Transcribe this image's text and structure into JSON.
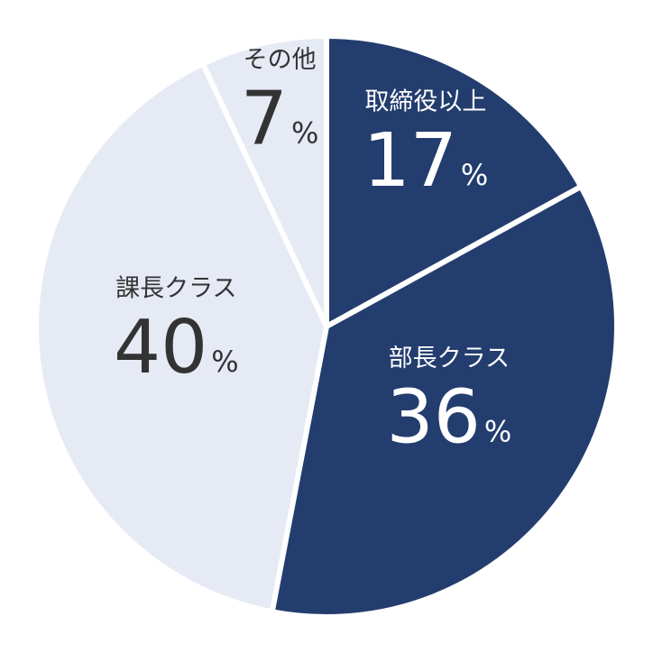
{
  "chart_data": {
    "type": "pie",
    "categories": [
      "取締役以上",
      "部長クラス",
      "課長クラス",
      "その他"
    ],
    "values": [
      17,
      36,
      40,
      7
    ],
    "colors": [
      "#233d6e",
      "#233d6e",
      "#e6eaf5",
      "#e6eaf5"
    ],
    "unit": "%"
  }
}
